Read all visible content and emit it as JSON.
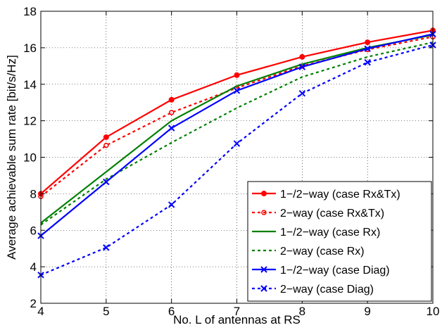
{
  "chart_data": {
    "type": "line",
    "xlabel": "No. L of antennas at RS",
    "ylabel": "Average achievable sum rate [bit/s/Hz]",
    "xlim": [
      4,
      10
    ],
    "ylim": [
      2,
      18
    ],
    "xticks": [
      4,
      5,
      6,
      7,
      8,
      9,
      10
    ],
    "yticks": [
      2,
      4,
      6,
      8,
      10,
      12,
      14,
      16,
      18
    ],
    "grid": true,
    "legend_position": "bottom-right",
    "x": [
      4,
      5,
      6,
      7,
      8,
      9,
      10
    ],
    "series": [
      {
        "name": "1−/2−way (case Rx&Tx)",
        "color": "#ff0000",
        "dash": "solid",
        "marker": "dot",
        "values": [
          8.0,
          11.1,
          13.15,
          14.5,
          15.5,
          16.3,
          16.95
        ]
      },
      {
        "name": "2−way (case Rx&Tx)",
        "color": "#ff0000",
        "dash": "dotted",
        "marker": "circle",
        "values": [
          7.85,
          10.65,
          12.45,
          13.8,
          15.0,
          15.9,
          16.6
        ]
      },
      {
        "name": "1−/2−way (case Rx)",
        "color": "#008000",
        "dash": "solid",
        "marker": "none",
        "values": [
          6.4,
          9.2,
          12.0,
          13.9,
          15.1,
          16.0,
          16.7
        ]
      },
      {
        "name": "2−way (case Rx)",
        "color": "#008000",
        "dash": "dotted",
        "marker": "none",
        "values": [
          6.3,
          8.8,
          10.8,
          12.7,
          14.4,
          15.5,
          16.3
        ]
      },
      {
        "name": "1−/2−way (case Diag)",
        "color": "#0000ff",
        "dash": "solid",
        "marker": "x",
        "values": [
          5.7,
          8.65,
          11.6,
          13.65,
          14.95,
          15.95,
          16.75
        ]
      },
      {
        "name": "2−way (case Diag)",
        "color": "#0000ff",
        "dash": "dotted",
        "marker": "x",
        "values": [
          3.55,
          5.05,
          7.4,
          10.75,
          13.5,
          15.2,
          16.15
        ]
      }
    ]
  }
}
